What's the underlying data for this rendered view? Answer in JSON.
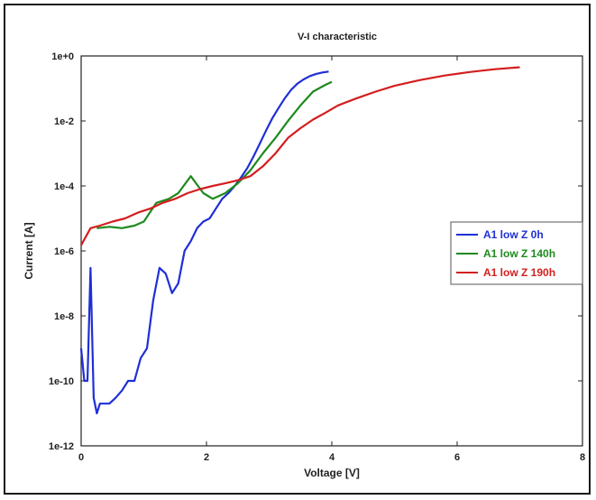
{
  "chart_data": {
    "type": "line",
    "title": "V-I characteristic",
    "xlabel": "Voltage [V]",
    "ylabel": "Current [A]",
    "xlim": [
      0,
      8
    ],
    "ylim_log10": [
      -12,
      0
    ],
    "yscale": "log",
    "x_ticks": [
      0,
      2,
      4,
      6,
      8
    ],
    "x_tick_labels": [
      "0",
      "2",
      "4",
      "6",
      "8"
    ],
    "y_ticks_log10": [
      0,
      -2,
      -4,
      -6,
      -8,
      -10,
      -12
    ],
    "y_tick_labels": [
      "1e+0",
      "1e-2",
      "1e-4",
      "1e-6",
      "1e-8",
      "1e-10",
      "1e-12"
    ],
    "grid": false,
    "legend_position": "right",
    "series": [
      {
        "name": "A1 low Z 0h",
        "color": "#1f2fd6",
        "x": [
          0.0,
          0.05,
          0.1,
          0.15,
          0.2,
          0.25,
          0.3,
          0.35,
          0.45,
          0.55,
          0.65,
          0.75,
          0.85,
          0.95,
          1.05,
          1.15,
          1.25,
          1.35,
          1.45,
          1.55,
          1.65,
          1.75,
          1.85,
          1.95,
          2.05,
          2.15,
          2.25,
          2.35,
          2.45,
          2.55,
          2.65,
          2.75,
          2.85,
          2.95,
          3.05,
          3.15,
          3.25,
          3.35,
          3.45,
          3.55,
          3.65,
          3.75,
          3.85,
          3.95
        ],
        "y": [
          1e-09,
          1e-10,
          1e-10,
          3e-07,
          3e-11,
          1e-11,
          2e-11,
          2e-11,
          2e-11,
          3e-11,
          5e-11,
          1e-10,
          1e-10,
          5e-10,
          1e-09,
          3e-08,
          3e-07,
          2e-07,
          5e-08,
          1e-07,
          1e-06,
          2e-06,
          5e-06,
          8e-06,
          1e-05,
          2e-05,
          4e-05,
          6e-05,
          0.0001,
          0.00018,
          0.00035,
          0.0008,
          0.002,
          0.005,
          0.012,
          0.025,
          0.05,
          0.09,
          0.14,
          0.19,
          0.24,
          0.28,
          0.31,
          0.33
        ]
      },
      {
        "name": "A1 low Z 140h",
        "color": "#1e8a1e",
        "x": [
          0.25,
          0.45,
          0.65,
          0.85,
          1.0,
          1.2,
          1.4,
          1.55,
          1.75,
          1.95,
          2.1,
          2.3,
          2.5,
          2.7,
          2.9,
          3.1,
          3.3,
          3.5,
          3.7,
          3.9,
          4.0
        ],
        "y": [
          5e-06,
          5.5e-06,
          5e-06,
          6e-06,
          8e-06,
          3e-05,
          4e-05,
          6e-05,
          0.0002,
          6e-05,
          4e-05,
          6e-05,
          0.00012,
          0.0003,
          0.001,
          0.003,
          0.01,
          0.03,
          0.08,
          0.13,
          0.16
        ]
      },
      {
        "name": "A1 low Z 190h",
        "color": "#d41e1e",
        "x": [
          0.0,
          0.15,
          0.3,
          0.5,
          0.7,
          0.9,
          1.1,
          1.3,
          1.5,
          1.7,
          1.9,
          2.1,
          2.3,
          2.5,
          2.7,
          2.9,
          3.1,
          3.3,
          3.5,
          3.7,
          3.9,
          4.1,
          4.4,
          4.7,
          5.0,
          5.4,
          5.8,
          6.2,
          6.6,
          7.0
        ],
        "y": [
          1.5e-06,
          5e-06,
          6e-06,
          8e-06,
          1e-05,
          1.5e-05,
          2e-05,
          3e-05,
          4e-05,
          6e-05,
          8e-05,
          0.0001,
          0.00012,
          0.00015,
          0.0002,
          0.0004,
          0.001,
          0.003,
          0.006,
          0.011,
          0.018,
          0.03,
          0.05,
          0.08,
          0.12,
          0.18,
          0.25,
          0.32,
          0.39,
          0.45
        ]
      }
    ]
  }
}
